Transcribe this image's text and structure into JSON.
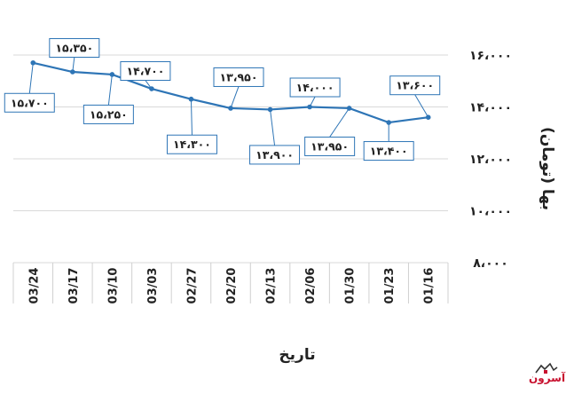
{
  "chart_data": {
    "type": "line",
    "xlabel": "تاریخ",
    "ylabel": "بها (تومان)",
    "ylim": [
      8000,
      16000
    ],
    "y_ticks": [
      "۸،۰۰۰",
      "۱۰،۰۰۰",
      "۱۲،۰۰۰",
      "۱۴،۰۰۰",
      "۱۶،۰۰۰"
    ],
    "y_tick_values": [
      8000,
      10000,
      12000,
      14000,
      16000
    ],
    "grid": true,
    "legend": "none",
    "categories": [
      "03/24",
      "03/17",
      "03/10",
      "03/03",
      "02/27",
      "02/20",
      "02/13",
      "02/06",
      "01/30",
      "01/23",
      "01/16"
    ],
    "series": [
      {
        "values": [
          15700,
          15350,
          15250,
          14700,
          14300,
          13950,
          13900,
          14000,
          13950,
          13400,
          13600
        ],
        "data_labels": [
          "۱۵،۷۰۰",
          "۱۵،۳۵۰",
          "۱۵،۲۵۰",
          "۱۴،۷۰۰",
          "۱۴،۳۰۰",
          "۱۳،۹۵۰",
          "۱۳،۹۰۰",
          "۱۴،۰۰۰",
          "۱۳،۹۵۰",
          "۱۳،۴۰۰",
          "۱۳،۶۰۰"
        ],
        "color": "#2e75b6"
      }
    ]
  },
  "logo": {
    "text": "آسرون",
    "accent": "#c8102e"
  }
}
